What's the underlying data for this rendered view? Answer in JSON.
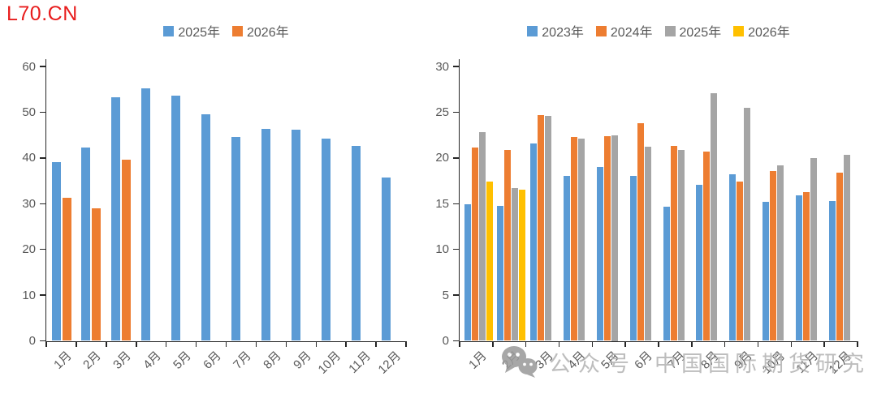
{
  "page": {
    "code": "L70.CN",
    "code_color": "#e81c1c"
  },
  "watermark": {
    "icon": "wechat-icon",
    "label": "公众号",
    "text": "中国国际期货研究",
    "color": "#b4b4b4"
  },
  "colors": {
    "blue": "#5B9BD5",
    "orange": "#ED7D31",
    "gray": "#A5A5A5",
    "yellow": "#FFC000",
    "axis": "#262626",
    "tick_label": "#595959"
  },
  "chart_data": [
    {
      "type": "bar",
      "title": "",
      "xlabel": "",
      "ylabel": "",
      "grid": false,
      "legend_position": "top",
      "ylim": [
        0,
        60
      ],
      "ytick_step": 10,
      "categories": [
        "1月",
        "2月",
        "3月",
        "4月",
        "5月",
        "6月",
        "7月",
        "8月",
        "9月",
        "10月",
        "11月",
        "12月"
      ],
      "series": [
        {
          "name": "2025年",
          "color_key": "blue",
          "values": [
            39,
            42.2,
            53.3,
            55.2,
            53.6,
            49.6,
            44.6,
            46.4,
            46.1,
            44.3,
            42.6,
            35.7
          ]
        },
        {
          "name": "2026年",
          "color_key": "orange",
          "values": [
            31.2,
            28.9,
            39.6,
            null,
            null,
            null,
            null,
            null,
            null,
            null,
            null,
            null
          ]
        }
      ]
    },
    {
      "type": "bar",
      "title": "",
      "xlabel": "",
      "ylabel": "",
      "grid": false,
      "legend_position": "top",
      "ylim": [
        0,
        30
      ],
      "ytick_step": 5,
      "categories": [
        "1月",
        "2月",
        "3月",
        "4月",
        "5月",
        "6月",
        "7月",
        "8月",
        "9月",
        "10月",
        "11月",
        "12月"
      ],
      "series": [
        {
          "name": "2023年",
          "color_key": "blue",
          "values": [
            14.9,
            14.8,
            21.6,
            18.0,
            19.0,
            18.0,
            14.7,
            17.1,
            18.2,
            15.2,
            15.9,
            15.3
          ]
        },
        {
          "name": "2024年",
          "color_key": "orange",
          "values": [
            21.1,
            20.9,
            24.7,
            22.3,
            22.4,
            23.8,
            21.3,
            20.7,
            17.4,
            18.6,
            16.3,
            18.4
          ]
        },
        {
          "name": "2025年",
          "color_key": "gray",
          "values": [
            22.8,
            16.7,
            24.6,
            22.1,
            22.5,
            21.2,
            20.9,
            27.1,
            25.5,
            19.2,
            20.0,
            20.3
          ]
        },
        {
          "name": "2026年",
          "color_key": "yellow",
          "values": [
            17.4,
            16.5,
            null,
            null,
            null,
            null,
            null,
            null,
            null,
            null,
            null,
            null
          ]
        }
      ]
    }
  ]
}
